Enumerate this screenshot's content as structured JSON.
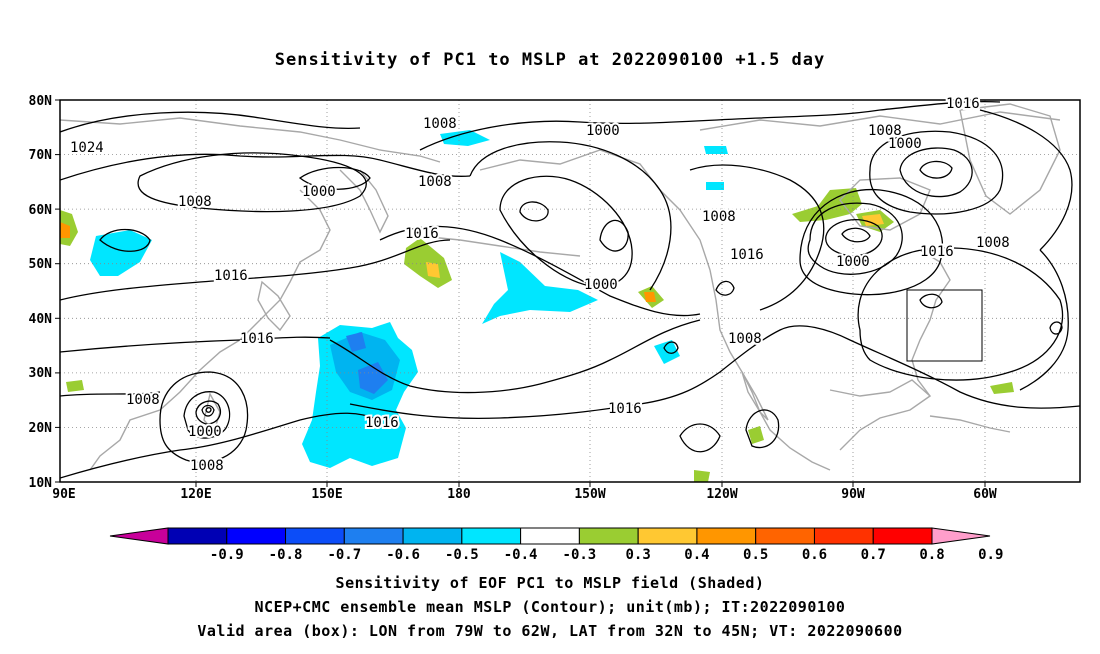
{
  "title": "Sensitivity of PC1 to MSLP at 2022090100 +1.5 day",
  "lat_labels": [
    "80N",
    "70N",
    "60N",
    "50N",
    "40N",
    "30N",
    "20N",
    "10N"
  ],
  "lon_labels": [
    "90E",
    "120E",
    "150E",
    "180",
    "150W",
    "120W",
    "90W",
    "60W"
  ],
  "contour_labels": [
    "1024",
    "1008",
    "1000",
    "1008",
    "1016",
    "1008",
    "1000",
    "1016",
    "1000",
    "1008",
    "1016",
    "1000",
    "1008",
    "1008",
    "1016",
    "1016",
    "1000",
    "1008",
    "1016",
    "1016",
    "1000",
    "1008",
    "1008",
    "1016"
  ],
  "colorbar": {
    "labels": [
      "-0.9",
      "-0.8",
      "-0.7",
      "-0.6",
      "-0.5",
      "-0.4",
      "-0.3",
      "0.3",
      "0.4",
      "0.5",
      "0.6",
      "0.7",
      "0.8",
      "0.9"
    ],
    "colors": [
      "#c8009a",
      "#0000b4",
      "#0000ff",
      "#0c4df8",
      "#1e7ff0",
      "#00b4f0",
      "#00e6ff",
      "#ffffff",
      "#9acd32",
      "#ffc832",
      "#ff9600",
      "#ff6400",
      "#ff3200",
      "#ff0000",
      "#ff9ecb"
    ]
  },
  "captions": {
    "line1": "Sensitivity of EOF PC1 to MSLP field (Shaded)",
    "line2": "NCEP+CMC ensemble mean MSLP (Contour); unit(mb); IT:2022090100",
    "line3": "Valid area (box): LON from 79W to 62W, LAT from 32N to 45N; VT: 2022090600"
  }
}
